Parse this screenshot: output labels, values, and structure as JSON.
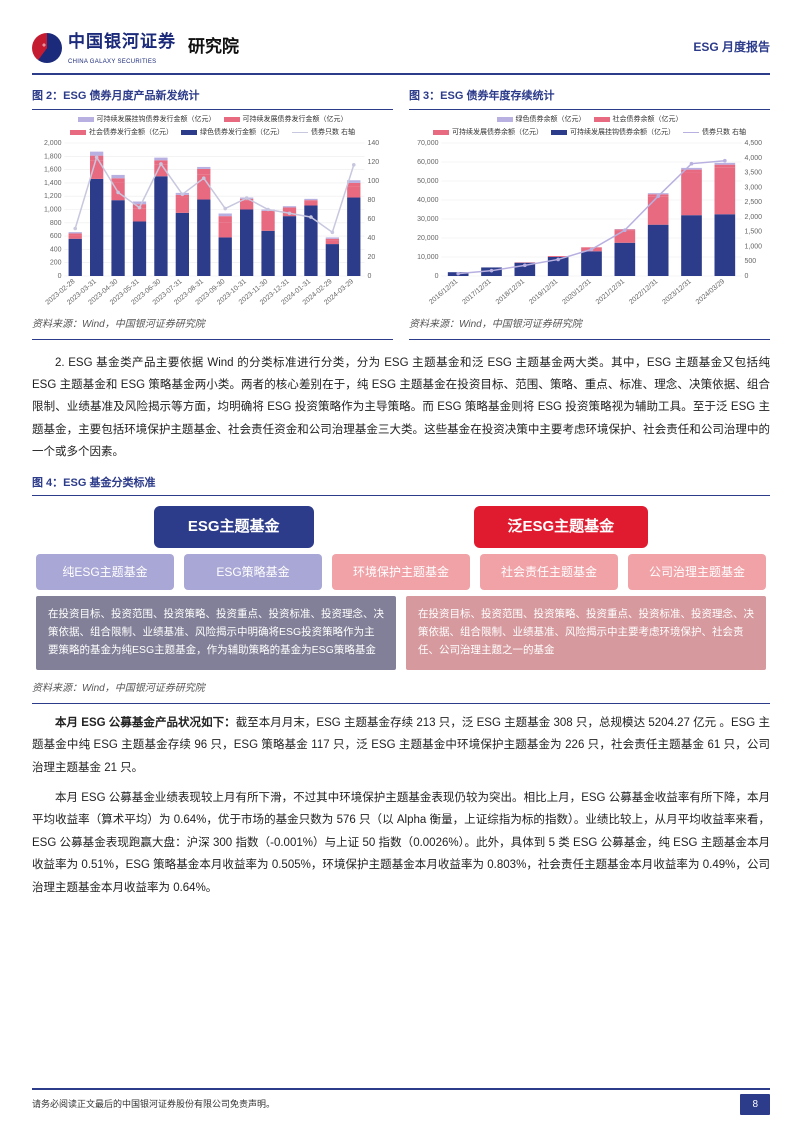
{
  "header": {
    "brand_cn": "中国银河证券",
    "brand_en": "CHINA GALAXY SECURITIES",
    "suffix": "研究院",
    "right": "ESG 月度报告"
  },
  "fig2": {
    "title": "图 2：ESG 债券月度产品新发统计",
    "legend": [
      "可持续发展挂钩债券发行金额（亿元）",
      "可持续发展债券发行金额（亿元）",
      "社会债券发行金额（亿元）",
      "绿色债券发行金额（亿元）",
      "债券只数 右轴"
    ],
    "colors": {
      "sustain_link": "#b8b0e0",
      "sustain_dev": "#e86a80",
      "social": "#e86a80",
      "green": "#2c3b8a",
      "line": "#c7c7df",
      "grid": "#ececec",
      "bg": "#ffffff"
    },
    "y_left": {
      "min": 0,
      "max": 2000,
      "step": 200
    },
    "y_right": {
      "min": 0,
      "max": 140,
      "step": 20
    },
    "categories": [
      "2023-02-28",
      "2023-03-31",
      "2023-04-30",
      "2023-05-31",
      "2023-06-30",
      "2023-07-31",
      "2023-08-31",
      "2023-09-30",
      "2023-10-31",
      "2023-11-30",
      "2023-12-31",
      "2024-01-31",
      "2024-02-29",
      "2024-03-29"
    ],
    "stacks": {
      "green": [
        560,
        1460,
        1140,
        820,
        1500,
        950,
        1150,
        580,
        1000,
        680,
        900,
        1060,
        480,
        1180
      ],
      "social": [
        50,
        280,
        260,
        200,
        180,
        230,
        380,
        220,
        130,
        260,
        100,
        60,
        60,
        160
      ],
      "sustain_dev": [
        30,
        70,
        70,
        60,
        60,
        40,
        80,
        100,
        30,
        40,
        30,
        20,
        20,
        60
      ],
      "sustain_link": [
        20,
        60,
        50,
        40,
        40,
        30,
        30,
        40,
        20,
        20,
        20,
        20,
        20,
        40
      ]
    },
    "line_counts": [
      50,
      125,
      88,
      72,
      118,
      86,
      103,
      71,
      82,
      70,
      66,
      62,
      46,
      117
    ],
    "source": "资料来源：Wind，中国银河证券研究院"
  },
  "fig3": {
    "title": "图 3：ESG 债券年度存续统计",
    "legend": [
      "绿色债券余额（亿元）",
      "社会债券余额（亿元）",
      "可持续发展债券余额（亿元）",
      "可持续发展挂钩债券余额（亿元）",
      "债券只数 右轴"
    ],
    "colors": {
      "green": "#2c3b8a",
      "social": "#e86a80",
      "sustain_dev": "#e86a80",
      "sustain_link": "#b8b0e0",
      "line": "#b8b0e0",
      "grid": "#ececec"
    },
    "y_left": {
      "min": 0,
      "max": 70000,
      "step": 10000
    },
    "y_right": {
      "min": 0,
      "max": 4500,
      "step": 500
    },
    "categories": [
      "2016/12/31",
      "2017/12/31",
      "2018/12/31",
      "2019/12/31",
      "2020/12/31",
      "2021/12/31",
      "2022/12/31",
      "2023/12/31",
      "2024/03/29"
    ],
    "stacks": {
      "green": [
        2000,
        4500,
        7000,
        10000,
        13000,
        17500,
        27000,
        32000,
        32500
      ],
      "social": [
        0,
        0,
        200,
        500,
        2000,
        6500,
        15000,
        22500,
        24500
      ],
      "sustain_dev": [
        0,
        0,
        0,
        0,
        100,
        500,
        1000,
        1500,
        1600
      ],
      "sustain_link": [
        0,
        0,
        0,
        0,
        0,
        200,
        600,
        900,
        950
      ]
    },
    "line_counts": [
      80,
      180,
      360,
      560,
      900,
      1550,
      2700,
      3800,
      3900
    ],
    "source": "资料来源：Wind，中国银河证券研究院"
  },
  "para1": "2. ESG 基金类产品主要依据 Wind 的分类标准进行分类，分为 ESG 主题基金和泛 ESG 主题基金两大类。其中，ESG 主题基金又包括纯 ESG 主题基金和 ESG 策略基金两小类。两者的核心差别在于，纯 ESG 主题基金在投资目标、范围、策略、重点、标准、理念、决策依据、组合限制、业绩基准及风险揭示等方面，均明确将 ESG 投资策略作为主导策略。而 ESG 策略基金则将 ESG 投资策略视为辅助工具。至于泛 ESG 主题基金，主要包括环境保护主题基金、社会责任资金和公司治理基金三大类。这些基金在投资决策中主要考虑环境保护、社会责任和公司治理中的一个或多个因素。",
  "fig4": {
    "title": "图 4：ESG 基金分类标准",
    "tab_left": "ESG主题基金",
    "tab_right": "泛ESG主题基金",
    "tab_left_bg": "#2c3b8a",
    "tab_right_bg": "#e11b2f",
    "chips_left": [
      "纯ESG主题基金",
      "ESG策略基金"
    ],
    "chips_right": [
      "环境保护主题基金",
      "社会责任主题基金",
      "公司治理主题基金"
    ],
    "chip_left_bg": "#a9a7d5",
    "chip_right_bg": "#f0a2a7",
    "box_left_bg": "#828098",
    "box_right_bg": "#d69a9e",
    "box_left": "在投资目标、投资范围、投资策略、投资重点、投资标准、投资理念、决策依据、组合限制、业绩基准、风险揭示中明确将ESG投资策略作为主要策略的基金为纯ESG主题基金，作为辅助策略的基金为ESG策略基金",
    "box_right": "在投资目标、投资范围、投资策略、投资重点、投资标准、投资理念、决策依据、组合限制、业绩基准、风险揭示中主要考虑环境保护、社会责任、公司治理主题之一的基金",
    "source": "资料来源：Wind，中国银河证券研究院"
  },
  "para2_lead": "本月 ESG 公募基金产品状况如下：",
  "para2": "截至本月月末，ESG 主题基金存续 213 只，泛 ESG 主题基金 308 只，总规模达 5204.27 亿元 。ESG 主题基金中纯 ESG 主题基金存续 96 只，ESG 策略基金 117 只，泛 ESG 主题基金中环境保护主题基金为 226 只，社会责任主题基金 61 只，公司治理主题基金 21 只。",
  "para3": "本月 ESG 公募基金业绩表现较上月有所下滑，不过其中环境保护主题基金表现仍较为突出。相比上月，ESG 公募基金收益率有所下降，本月平均收益率（算术平均）为 0.64%，优于市场的基金只数为 576 只（以 Alpha 衡量，上证综指为标的指数）。业绩比较上，从月平均收益率来看，ESG 公募基金表现跑赢大盘：沪深 300 指数（-0.001%）与上证 50 指数（0.0026%）。此外，具体到 5 类 ESG 公募基金，纯 ESG 主题基金本月收益率为 0.51%，ESG 策略基金本月收益率为 0.505%，环境保护主题基金本月收益率为 0.803%，社会责任主题基金本月收益率为 0.49%，公司治理主题基金本月收益率为 0.64%。",
  "footer": {
    "disclaimer": "请务必阅读正文最后的中国银河证券股份有限公司免责声明。",
    "page": "8"
  }
}
